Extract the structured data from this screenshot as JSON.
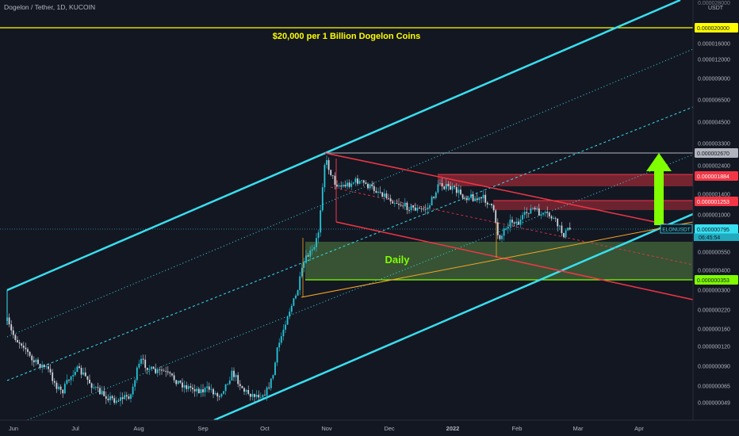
{
  "header": {
    "symbol_line": "Dogelon / Tether, 1D, KUCOIN",
    "unit": "USDT"
  },
  "colors": {
    "background": "#131722",
    "candle_up": "#26c6da",
    "candle_down": "#d1d4dc",
    "channel": "#38dff0",
    "yellow": "#ffff00",
    "red": "#f23645",
    "green_zone": "#6aa84f",
    "lime": "#7fff00",
    "orange": "#f5a623",
    "gray": "#b2b5be"
  },
  "annotations": {
    "headline": "$20,000 per 1 Billion Dogelon Coins",
    "zone_label": "Daily",
    "ticker_label": "ELONUSDT",
    "countdown": "06:45:54"
  },
  "chart_data": {
    "type": "candlestick",
    "log_scale": true,
    "grid": false,
    "x_ticks": [
      "Jun",
      "Jul",
      "Aug",
      "Sep",
      "Oct",
      "Nov",
      "Dec",
      "2022",
      "Feb",
      "Mar",
      "Apr"
    ],
    "y_ticks": [
      "0.000020000",
      "0.000016000",
      "0.000012000",
      "0.000009000",
      "0.000006500",
      "0.000004500",
      "0.000003300",
      "0.000002400",
      "0.000001400",
      "0.000001000",
      "0.000000550",
      "0.000000400",
      "0.000000300",
      "0.000000220",
      "0.000000160",
      "0.000000120",
      "0.000000090",
      "0.000000065",
      "0.000000049"
    ],
    "y_top_partial": "0.000028000",
    "price_badges": [
      {
        "value": "0.000020000",
        "color": "#ffff00"
      },
      {
        "value": "0.000002670",
        "color": "#b2b5be"
      },
      {
        "value": "0.000001884",
        "color": "#f23645"
      },
      {
        "value": "0.000001253",
        "color": "#f23645"
      },
      {
        "value": "0.000000795",
        "color": "#38dff0"
      },
      {
        "value": "0.000000353",
        "color": "#7fff00"
      }
    ],
    "last_price": "0.000000795"
  }
}
